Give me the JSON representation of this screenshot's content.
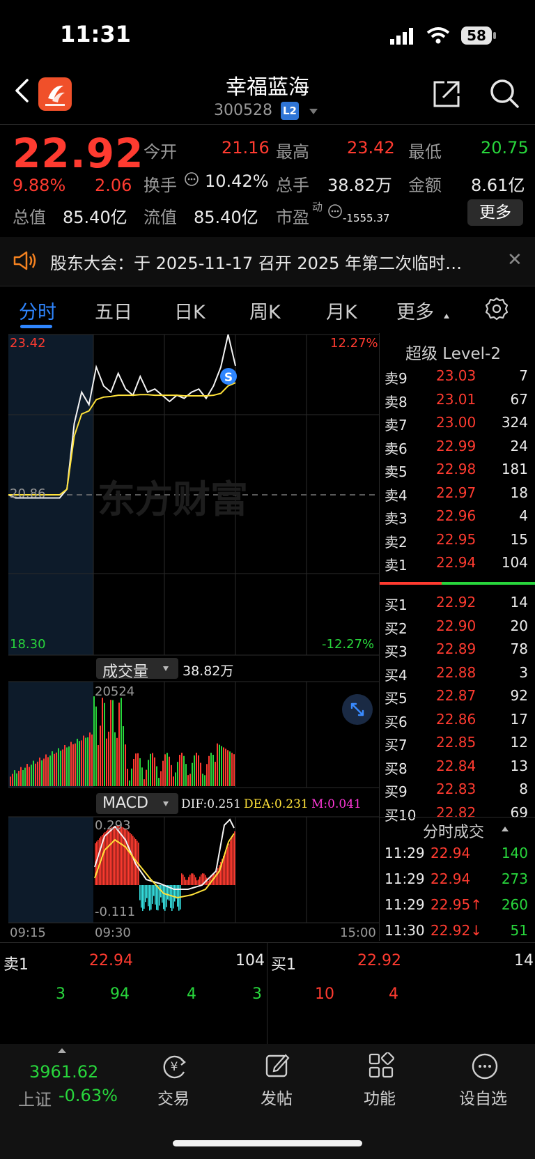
{
  "status_bar": {
    "time": "11:31",
    "battery": "58"
  },
  "header": {
    "title": "幸福蓝海",
    "code": "300528",
    "level_badge": "L2"
  },
  "quote": {
    "price": "22.92",
    "change_pct": "9.88%",
    "change": "2.06",
    "stats": [
      {
        "label": "今开",
        "value": "21.16"
      },
      {
        "label": "最高",
        "value": "23.42"
      },
      {
        "label": "最低",
        "value": "20.75"
      },
      {
        "label": "换手",
        "value": "10.42%"
      },
      {
        "label": "总手",
        "value": "38.82万"
      },
      {
        "label": "金额",
        "value": "8.61亿"
      },
      {
        "label": "总值",
        "value": "85.40亿"
      },
      {
        "label": "流值",
        "value": "85.40亿"
      },
      {
        "label": "市盈",
        "value": "-1555.37",
        "sup": "动"
      }
    ],
    "more_label": "更多"
  },
  "notice": {
    "text": "股东大会：于 2025-11-17 召开 2025 年第二次临时…"
  },
  "tabs": [
    "分时",
    "五日",
    "日K",
    "周K",
    "月K",
    "更多"
  ],
  "chart_labels": {
    "price_high": "23.42",
    "price_pre_close": "20.86",
    "price_low": "18.30",
    "pct_high": "12.27%",
    "pct_low": "-12.27%",
    "signal": "S",
    "watermark": "东方财富",
    "volume_selector": "成交量",
    "volume_total": "38.82万",
    "volume_max": "20524",
    "macd_selector": "MACD",
    "dif": "DIF:0.251",
    "dea": "DEA:0.231",
    "m": "M:0.041",
    "macd_max": "0.293",
    "macd_min": "-0.111",
    "time_start": "09:15",
    "time_open": "09:30",
    "time_end": "15:00"
  },
  "level2": {
    "title": "超级 Level-2",
    "asks": [
      {
        "label": "卖9",
        "price": "23.03",
        "vol": "7"
      },
      {
        "label": "卖8",
        "price": "23.01",
        "vol": "67"
      },
      {
        "label": "卖7",
        "price": "23.00",
        "vol": "324"
      },
      {
        "label": "卖6",
        "price": "22.99",
        "vol": "24"
      },
      {
        "label": "卖5",
        "price": "22.98",
        "vol": "181"
      },
      {
        "label": "卖4",
        "price": "22.97",
        "vol": "18"
      },
      {
        "label": "卖3",
        "price": "22.96",
        "vol": "4"
      },
      {
        "label": "卖2",
        "price": "22.95",
        "vol": "15"
      },
      {
        "label": "卖1",
        "price": "22.94",
        "vol": "104"
      }
    ],
    "bids": [
      {
        "label": "买1",
        "price": "22.92",
        "vol": "14"
      },
      {
        "label": "买2",
        "price": "22.90",
        "vol": "20"
      },
      {
        "label": "买3",
        "price": "22.89",
        "vol": "78"
      },
      {
        "label": "买4",
        "price": "22.88",
        "vol": "3"
      },
      {
        "label": "买5",
        "price": "22.87",
        "vol": "92"
      },
      {
        "label": "买6",
        "price": "22.86",
        "vol": "17"
      },
      {
        "label": "买7",
        "price": "22.85",
        "vol": "12"
      },
      {
        "label": "买8",
        "price": "22.84",
        "vol": "13"
      },
      {
        "label": "买9",
        "price": "22.83",
        "vol": "8"
      },
      {
        "label": "买10",
        "price": "22.82",
        "vol": "69"
      }
    ],
    "ticks_title": "分时成交",
    "ticks": [
      {
        "time": "11:29",
        "price": "22.94",
        "vol": "140",
        "dir": ""
      },
      {
        "time": "11:29",
        "price": "22.94",
        "vol": "273",
        "dir": ""
      },
      {
        "time": "11:29",
        "price": "22.95↑",
        "vol": "260",
        "dir": "up"
      },
      {
        "time": "11:30",
        "price": "22.92↓",
        "vol": "51",
        "dir": "down"
      }
    ]
  },
  "tape": {
    "sell": {
      "label": "卖1",
      "price": "22.94",
      "vol": "104",
      "orders": [
        "3",
        "94",
        "4",
        "3"
      ]
    },
    "buy": {
      "label": "买1",
      "price": "22.92",
      "vol": "14",
      "orders": [
        "10",
        "4"
      ]
    }
  },
  "bottom_nav": {
    "index_value": "3961.62",
    "index_name": "上证",
    "index_change": "-0.63%",
    "items": [
      "交易",
      "发帖",
      "功能",
      "设自选"
    ]
  },
  "chart_data": {
    "type": "line",
    "title": "",
    "x_ticks": [
      "09:15",
      "09:30",
      "15:00"
    ],
    "ylim": [
      18.3,
      23.42
    ],
    "pre_close": 20.86,
    "series": [
      {
        "name": "",
        "values": [
          20.86,
          20.81,
          20.81,
          20.81,
          20.81,
          20.81,
          20.81,
          20.81,
          20.95,
          22.0,
          22.5,
          22.3,
          22.9,
          22.6,
          22.5,
          22.8,
          22.55,
          22.45,
          22.75,
          22.5,
          22.55,
          22.45,
          22.35,
          22.45,
          22.4,
          22.5,
          22.55,
          22.4,
          22.6,
          22.9,
          23.42,
          22.92
        ]
      },
      {
        "name": "",
        "values": [
          20.86,
          20.86,
          20.86,
          20.86,
          20.86,
          20.86,
          20.86,
          20.86,
          20.95,
          21.8,
          22.15,
          22.2,
          22.38,
          22.42,
          22.43,
          22.45,
          22.45,
          22.45,
          22.46,
          22.46,
          22.45,
          22.45,
          22.45,
          22.45,
          22.44,
          22.44,
          22.44,
          22.44,
          22.45,
          22.48,
          22.6,
          22.65
        ]
      }
    ],
    "volume_max": 20524,
    "macd_range": [
      -0.111,
      0.293
    ]
  }
}
